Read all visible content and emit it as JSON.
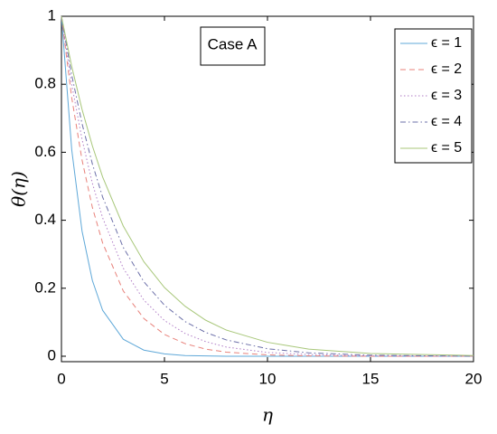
{
  "chart_data": {
    "type": "line",
    "xlabel": "η",
    "ylabel": "θ(η)",
    "annotation": "Case A",
    "x": [
      0,
      0.5,
      1,
      1.5,
      2,
      3,
      4,
      5,
      6,
      7,
      8,
      10,
      12,
      15,
      20
    ],
    "series": [
      {
        "name": "ϵ = 1",
        "color": "#5fa8d8",
        "linestyle": "-",
        "values": [
          1,
          0.607,
          0.368,
          0.223,
          0.135,
          0.05,
          0.018,
          0.007,
          0.002,
          0.001,
          0,
          0,
          0,
          0,
          0
        ]
      },
      {
        "name": "ϵ = 2",
        "color": "#e8817a",
        "linestyle": "--",
        "values": [
          1,
          0.76,
          0.577,
          0.438,
          0.333,
          0.192,
          0.111,
          0.064,
          0.037,
          0.021,
          0.012,
          0.004,
          0.001,
          0,
          0
        ]
      },
      {
        "name": "ϵ = 3",
        "color": "#b07cc6",
        "linestyle": ":",
        "values": [
          1,
          0.799,
          0.638,
          0.509,
          0.407,
          0.259,
          0.165,
          0.105,
          0.067,
          0.043,
          0.027,
          0.011,
          0.005,
          0.001,
          0
        ]
      },
      {
        "name": "ϵ = 4",
        "color": "#6b6fa8",
        "linestyle": "-.",
        "values": [
          1,
          0.827,
          0.684,
          0.566,
          0.468,
          0.32,
          0.219,
          0.15,
          0.102,
          0.07,
          0.048,
          0.022,
          0.01,
          0.003,
          0
        ]
      },
      {
        "name": "ϵ = 5",
        "color": "#a8c77a",
        "linestyle": "-",
        "values": [
          1,
          0.852,
          0.726,
          0.619,
          0.527,
          0.383,
          0.278,
          0.202,
          0.147,
          0.106,
          0.077,
          0.041,
          0.021,
          0.008,
          0.002
        ]
      }
    ],
    "xlim": [
      0,
      20
    ],
    "xticks": [
      0,
      5,
      10,
      15,
      20
    ],
    "ylim": [
      -0.016,
      1
    ],
    "yticks": [
      0,
      0.2,
      0.4,
      0.6,
      0.8,
      1
    ],
    "legend": "upper right",
    "grid": false
  }
}
